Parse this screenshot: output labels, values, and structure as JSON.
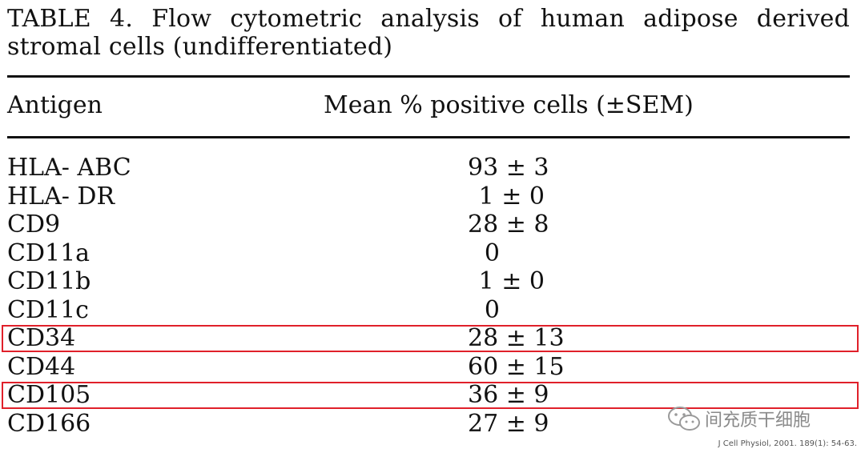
{
  "caption": "TABLE 4. Flow cytometric analysis of human adipose derived stromal cells (undifferentiated)",
  "table": {
    "headers": {
      "antigen": "Antigen",
      "mean": "Mean % positive cells (±SEM)"
    },
    "rows": [
      {
        "antigen": "HLA- ABC",
        "value": "93 ± 3",
        "highlighted": false
      },
      {
        "antigen": "HLA- DR",
        "value": "1 ± 0",
        "highlighted": false
      },
      {
        "antigen": "CD9",
        "value": "28 ± 8",
        "highlighted": false
      },
      {
        "antigen": "CD11a",
        "value": "0",
        "highlighted": false
      },
      {
        "antigen": "CD11b",
        "value": "1 ± 0",
        "highlighted": false
      },
      {
        "antigen": "CD11c",
        "value": "0",
        "highlighted": false
      },
      {
        "antigen": "CD34",
        "value": "28 ± 13",
        "highlighted": true
      },
      {
        "antigen": "CD44",
        "value": "60 ± 15",
        "highlighted": false
      },
      {
        "antigen": "CD105",
        "value": "36 ± 9",
        "highlighted": true
      },
      {
        "antigen": "CD166",
        "value": "27 ± 9",
        "highlighted": false
      }
    ]
  },
  "highlight_color": "#e0202a",
  "watermark": {
    "icon": "wechat-icon",
    "text": "间充质干细胞"
  },
  "citation": "J Cell Physiol, 2001. 189(1): 54-63."
}
